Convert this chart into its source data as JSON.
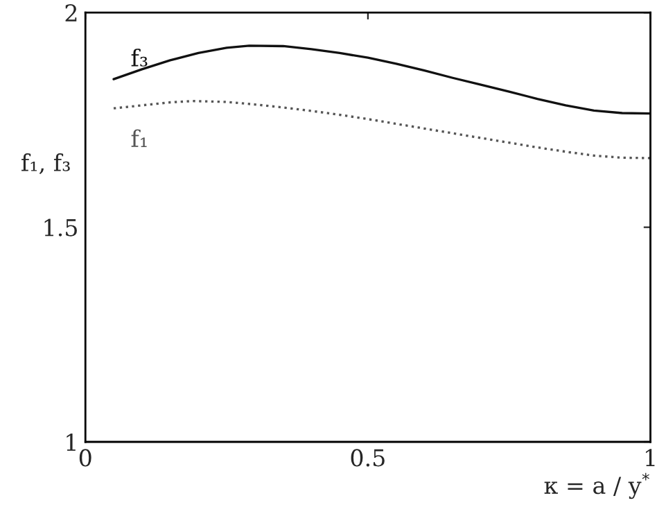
{
  "chart_data": {
    "type": "line",
    "xlabel": "κ = a / y$^{*}$",
    "ylabel": "f₁, f₃",
    "xlim": [
      0,
      1
    ],
    "ylim": [
      1,
      2
    ],
    "xticks": [
      0,
      0.5,
      1
    ],
    "yticks": [
      1,
      1.5,
      2
    ],
    "grid": false,
    "legend": false,
    "series": [
      {
        "name": "f₃",
        "color": "#111111",
        "line_style": "solid",
        "x": [
          0.05,
          0.1,
          0.15,
          0.2,
          0.25,
          0.29,
          0.35,
          0.4,
          0.45,
          0.5,
          0.55,
          0.6,
          0.65,
          0.7,
          0.75,
          0.8,
          0.85,
          0.9,
          0.95,
          1.0
        ],
        "values": [
          1.845,
          1.868,
          1.889,
          1.906,
          1.918,
          1.923,
          1.922,
          1.915,
          1.906,
          1.895,
          1.881,
          1.865,
          1.848,
          1.832,
          1.816,
          1.799,
          1.784,
          1.772,
          1.766,
          1.765
        ]
      },
      {
        "name": "f₁",
        "color": "#555555",
        "line_style": "dotted",
        "x": [
          0.05,
          0.1,
          0.15,
          0.19,
          0.25,
          0.3,
          0.35,
          0.4,
          0.45,
          0.5,
          0.55,
          0.6,
          0.65,
          0.7,
          0.75,
          0.8,
          0.85,
          0.9,
          0.95,
          1.0
        ],
        "values": [
          1.777,
          1.784,
          1.791,
          1.794,
          1.792,
          1.786,
          1.779,
          1.771,
          1.762,
          1.752,
          1.741,
          1.73,
          1.719,
          1.708,
          1.697,
          1.686,
          1.676,
          1.667,
          1.662,
          1.661
        ]
      }
    ]
  }
}
